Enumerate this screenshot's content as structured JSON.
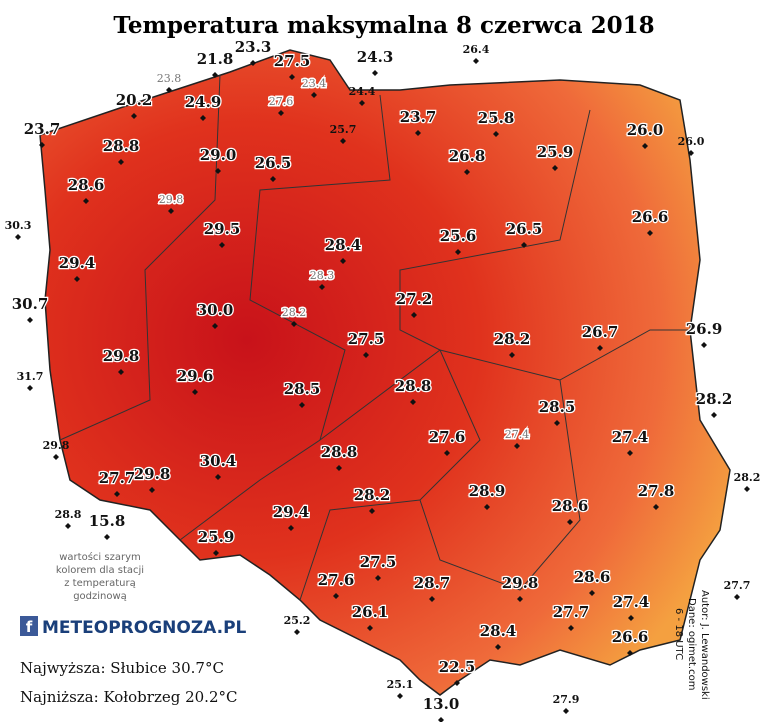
{
  "title": "Temperatura maksymalna 8 czerwca 2018",
  "stations": [
    "20.2",
    "24.9",
    "23.7",
    "28.8",
    "29.0",
    "26.5",
    "23.7",
    "25.8",
    "26.8",
    "25.9",
    "26.0",
    "28.6",
    "29.5",
    "28.4",
    "25.6",
    "26.5",
    "26.6",
    "29.4",
    "27.2",
    "30.7",
    "30.0",
    "28.2",
    "26.7",
    "26.9",
    "27.5",
    "29.8",
    "29.6",
    "28.5",
    "28.8",
    "28.2",
    "28.5",
    "27.6",
    "27.4",
    "29.8",
    "30.4",
    "28.8",
    "27.7",
    "28.9",
    "28.6",
    "27.8",
    "28.2",
    "29.4",
    "15.8",
    "25.9",
    "27.5",
    "27.6",
    "28.7",
    "29.8",
    "28.6",
    "27.4",
    "26.1",
    "27.7",
    "28.4",
    "26.6",
    "22.5",
    "13.0",
    "21.8",
    "23.3",
    "27.5",
    "24.3"
  ],
  "stations_small": [
    "26.4",
    "24.4",
    "25.7",
    "26.0",
    "30.3",
    "31.7",
    "29.8",
    "28.8",
    "25.2",
    "25.1",
    "27.9",
    "27.7",
    "28.2"
  ],
  "stations_hourly": [
    "23.8",
    "23.4",
    "27.6",
    "29.8",
    "28.3",
    "28.2",
    "27.4"
  ],
  "note": [
    "wartości szarym",
    "kolorem dla stacji",
    "z temperaturą",
    "godzinową"
  ],
  "logo": {
    "mark": "f",
    "text": "METEOPROGNOZA.PL"
  },
  "stats": [
    "Najwyższa: Słubice 30.7°C",
    "Najniższa: Kołobrzeg 20.2°C"
  ],
  "credits": [
    "Autor: J. Lewandowski",
    "Dane: ogimet.com",
    "6 - 18 UTC"
  ]
}
